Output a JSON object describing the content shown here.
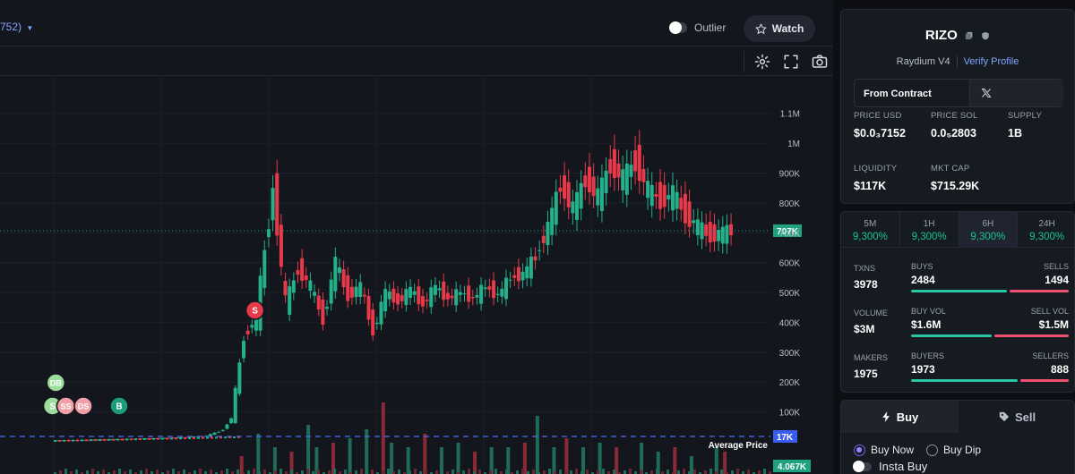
{
  "topbar": {
    "pair_label": "752)",
    "outlier_label": "Outlier",
    "watch_label": "Watch"
  },
  "toolbar_icons": [
    "settings-icon",
    "fullscreen-icon",
    "camera-icon"
  ],
  "chart_data": {
    "type": "candlestick",
    "y_ticks": [
      "1.1M",
      "1M",
      "900K",
      "800K",
      "700K",
      "600K",
      "500K",
      "400K",
      "300K",
      "200K",
      "100K"
    ],
    "current_price_tag": "707K",
    "average_price_label": "Average Price",
    "average_price_tag": "17K",
    "volume_tag": "4.067K",
    "ylim": [
      0,
      1150000
    ],
    "markers": [
      {
        "label": "DB",
        "color": "#9edc9e",
        "x_frac": 0.067,
        "value": 85000
      },
      {
        "label": "S",
        "color": "#9edc9e",
        "x_frac": 0.063,
        "value": 10000
      },
      {
        "label": "SS",
        "color": "#f0a0a6",
        "x_frac": 0.079,
        "value": 10000
      },
      {
        "label": "DS",
        "color": "#f0a0a6",
        "x_frac": 0.1,
        "value": 10000
      },
      {
        "label": "B",
        "color": "#1a9d78",
        "x_frac": 0.143,
        "value": 15000
      },
      {
        "label": "S",
        "color": "#e8394a",
        "x_frac": 0.306,
        "value": 420000
      }
    ],
    "price_points": [
      [
        0.065,
        5000
      ],
      [
        0.1,
        6000
      ],
      [
        0.13,
        8000
      ],
      [
        0.16,
        10000
      ],
      [
        0.19,
        12000
      ],
      [
        0.22,
        15000
      ],
      [
        0.25,
        20000
      ],
      [
        0.27,
        40000
      ],
      [
        0.28,
        80000
      ],
      [
        0.295,
        350000
      ],
      [
        0.31,
        420000
      ],
      [
        0.33,
        850000
      ],
      [
        0.345,
        460000
      ],
      [
        0.36,
        580000
      ],
      [
        0.375,
        520000
      ],
      [
        0.39,
        410000
      ],
      [
        0.405,
        600000
      ],
      [
        0.42,
        490000
      ],
      [
        0.435,
        520000
      ],
      [
        0.45,
        370000
      ],
      [
        0.465,
        500000
      ],
      [
        0.48,
        470000
      ],
      [
        0.495,
        510000
      ],
      [
        0.51,
        460000
      ],
      [
        0.525,
        520000
      ],
      [
        0.54,
        480000
      ],
      [
        0.555,
        500000
      ],
      [
        0.57,
        480000
      ],
      [
        0.585,
        520000
      ],
      [
        0.6,
        490000
      ],
      [
        0.615,
        550000
      ],
      [
        0.63,
        560000
      ],
      [
        0.645,
        620000
      ],
      [
        0.66,
        720000
      ],
      [
        0.675,
        860000
      ],
      [
        0.69,
        780000
      ],
      [
        0.705,
        880000
      ],
      [
        0.72,
        820000
      ],
      [
        0.735,
        930000
      ],
      [
        0.75,
        880000
      ],
      [
        0.765,
        940000
      ],
      [
        0.78,
        840000
      ],
      [
        0.795,
        810000
      ],
      [
        0.81,
        830000
      ],
      [
        0.825,
        760000
      ],
      [
        0.84,
        720000
      ],
      [
        0.855,
        690000
      ],
      [
        0.87,
        700000
      ],
      [
        0.88,
        707000
      ]
    ],
    "volumes": [
      [
        0.29,
        0.2
      ],
      [
        0.31,
        0.45
      ],
      [
        0.33,
        0.3
      ],
      [
        0.35,
        0.25
      ],
      [
        0.37,
        0.55
      ],
      [
        0.38,
        0.3
      ],
      [
        0.4,
        0.35
      ],
      [
        0.42,
        0.4
      ],
      [
        0.44,
        0.5
      ],
      [
        0.46,
        0.8
      ],
      [
        0.47,
        0.35
      ],
      [
        0.49,
        0.3
      ],
      [
        0.51,
        0.45
      ],
      [
        0.53,
        0.3
      ],
      [
        0.55,
        0.35
      ],
      [
        0.57,
        0.25
      ],
      [
        0.59,
        0.3
      ],
      [
        0.61,
        0.3
      ],
      [
        0.63,
        0.35
      ],
      [
        0.645,
        0.65
      ],
      [
        0.665,
        0.3
      ],
      [
        0.68,
        0.4
      ],
      [
        0.7,
        0.3
      ],
      [
        0.72,
        0.35
      ],
      [
        0.74,
        0.3
      ],
      [
        0.77,
        0.35
      ],
      [
        0.79,
        0.25
      ],
      [
        0.81,
        0.3
      ],
      [
        0.83,
        0.2
      ],
      [
        0.86,
        0.3
      ],
      [
        0.87,
        0.25
      ]
    ]
  },
  "token": {
    "name": "RIZO",
    "dex": "Raydium V4",
    "verify_label": "Verify Profile",
    "from_contract_label": "From Contract"
  },
  "stats": {
    "price_usd_label": "PRICE USD",
    "price_usd": "$0.0₃7152",
    "price_sol_label": "PRICE SOL",
    "price_sol": "0.0₅2803",
    "supply_label": "SUPPLY",
    "supply": "1B",
    "liquidity_label": "LIQUIDITY",
    "liquidity": "$117K",
    "mktcap_label": "MKT CAP",
    "mktcap": "$715.29K"
  },
  "timeframes": [
    {
      "label": "5M",
      "pct": "9,300%"
    },
    {
      "label": "1H",
      "pct": "9,300%"
    },
    {
      "label": "6H",
      "pct": "9,300%"
    },
    {
      "label": "24H",
      "pct": "9,300%"
    }
  ],
  "metrics": {
    "txns_label": "TXNS",
    "txns": "3978",
    "buys_label": "BUYS",
    "buys": "2484",
    "sells_label": "SELLS",
    "sells": "1494",
    "volume_label": "VOLUME",
    "volume": "$3M",
    "buy_vol_label": "BUY VOL",
    "buy_vol": "$1.6M",
    "sell_vol_label": "SELL VOL",
    "sell_vol": "$1.5M",
    "makers_label": "MAKERS",
    "makers": "1975",
    "buyers_label": "BUYERS",
    "buyers": "1973",
    "sellers_label": "SELLERS",
    "sellers": "888",
    "buys_frac": 0.62,
    "buy_vol_frac": 0.52,
    "buyers_frac": 0.69
  },
  "trade": {
    "buy_tab": "Buy",
    "sell_tab": "Sell",
    "buy_now": "Buy Now",
    "buy_dip": "Buy Dip",
    "insta_buy": "Insta Buy"
  }
}
